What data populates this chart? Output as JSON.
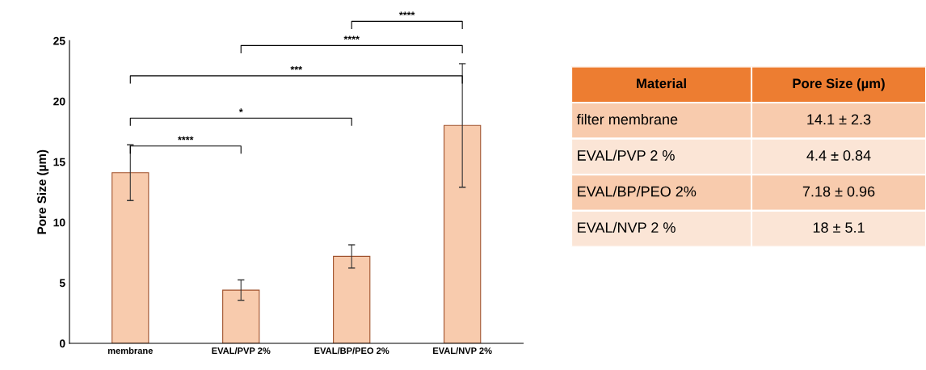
{
  "chart_data": [
    {
      "type": "bar",
      "ylabel": "Pore Size (µm)",
      "categories": [
        "membrane",
        "EVAL/PVP 2%",
        "EVAL/BP/PEO 2%",
        "EVAL/NVP 2%"
      ],
      "values": [
        14.1,
        4.4,
        7.18,
        18
      ],
      "errors": [
        2.3,
        0.84,
        0.96,
        5.1
      ],
      "color": "#f8cbad",
      "ylim": [
        0,
        25
      ],
      "yticks": [
        0,
        5,
        10,
        15,
        20,
        25
      ],
      "grid": false,
      "legend": false,
      "annotations": [
        "****",
        "****",
        "***",
        "*",
        "****"
      ]
    },
    {
      "type": "other",
      "annotations": [
        "Material",
        "Pore Size (µm)",
        "filter membrane",
        "14.1 ± 2.3",
        "EVAL/PVP 2 %",
        "4.4 ± 0.84",
        "EVAL/BP/PEO 2%",
        "7.18 ± 0.96",
        "EVAL/NVP 2 %",
        "18 ± 5.1"
      ]
    }
  ]
}
